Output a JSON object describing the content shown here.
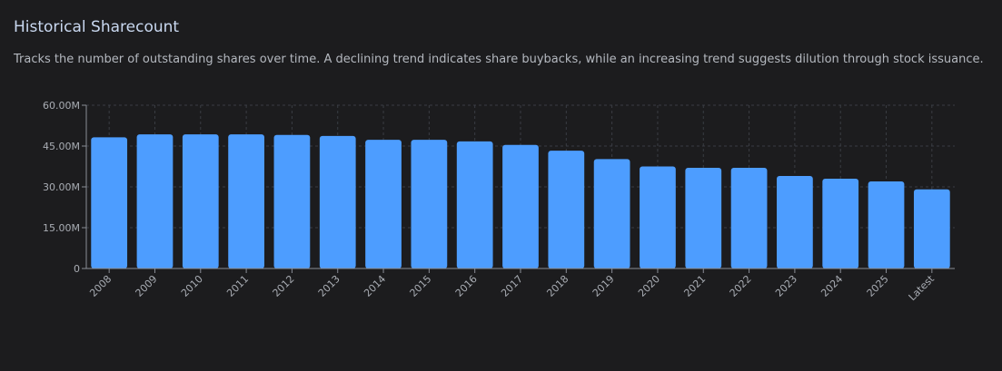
{
  "header": {
    "title": "Historical Sharecount",
    "subtitle": "Tracks the number of outstanding shares over time. A declining trend indicates share buybacks, while an increasing trend suggests dilution through stock issuance."
  },
  "colors": {
    "background": "#1c1c1e",
    "bar": "#4d9dff",
    "title": "#c9d8f0",
    "text": "#b4b8bf",
    "grid": "#3a3d44",
    "axis": "#8a8e96"
  },
  "chart_data": {
    "type": "bar",
    "title": "",
    "xlabel": "",
    "ylabel": "",
    "ylim": [
      0,
      60
    ],
    "y_unit": "M",
    "yticks": [
      0,
      15,
      30,
      45,
      60
    ],
    "ytick_labels": [
      "0",
      "15.00M",
      "30.00M",
      "45.00M",
      "60.00M"
    ],
    "grid": true,
    "categories": [
      "2008",
      "2009",
      "2010",
      "2011",
      "2012",
      "2013",
      "2014",
      "2015",
      "2016",
      "2017",
      "2018",
      "2019",
      "2020",
      "2021",
      "2022",
      "2023",
      "2024",
      "2025",
      "Latest"
    ],
    "values": [
      48.2,
      49.3,
      49.3,
      49.3,
      49.1,
      48.7,
      47.3,
      47.3,
      46.7,
      45.4,
      43.3,
      40.2,
      37.5,
      37.0,
      37.0,
      34.0,
      33.0,
      32.0,
      29.1
    ]
  }
}
